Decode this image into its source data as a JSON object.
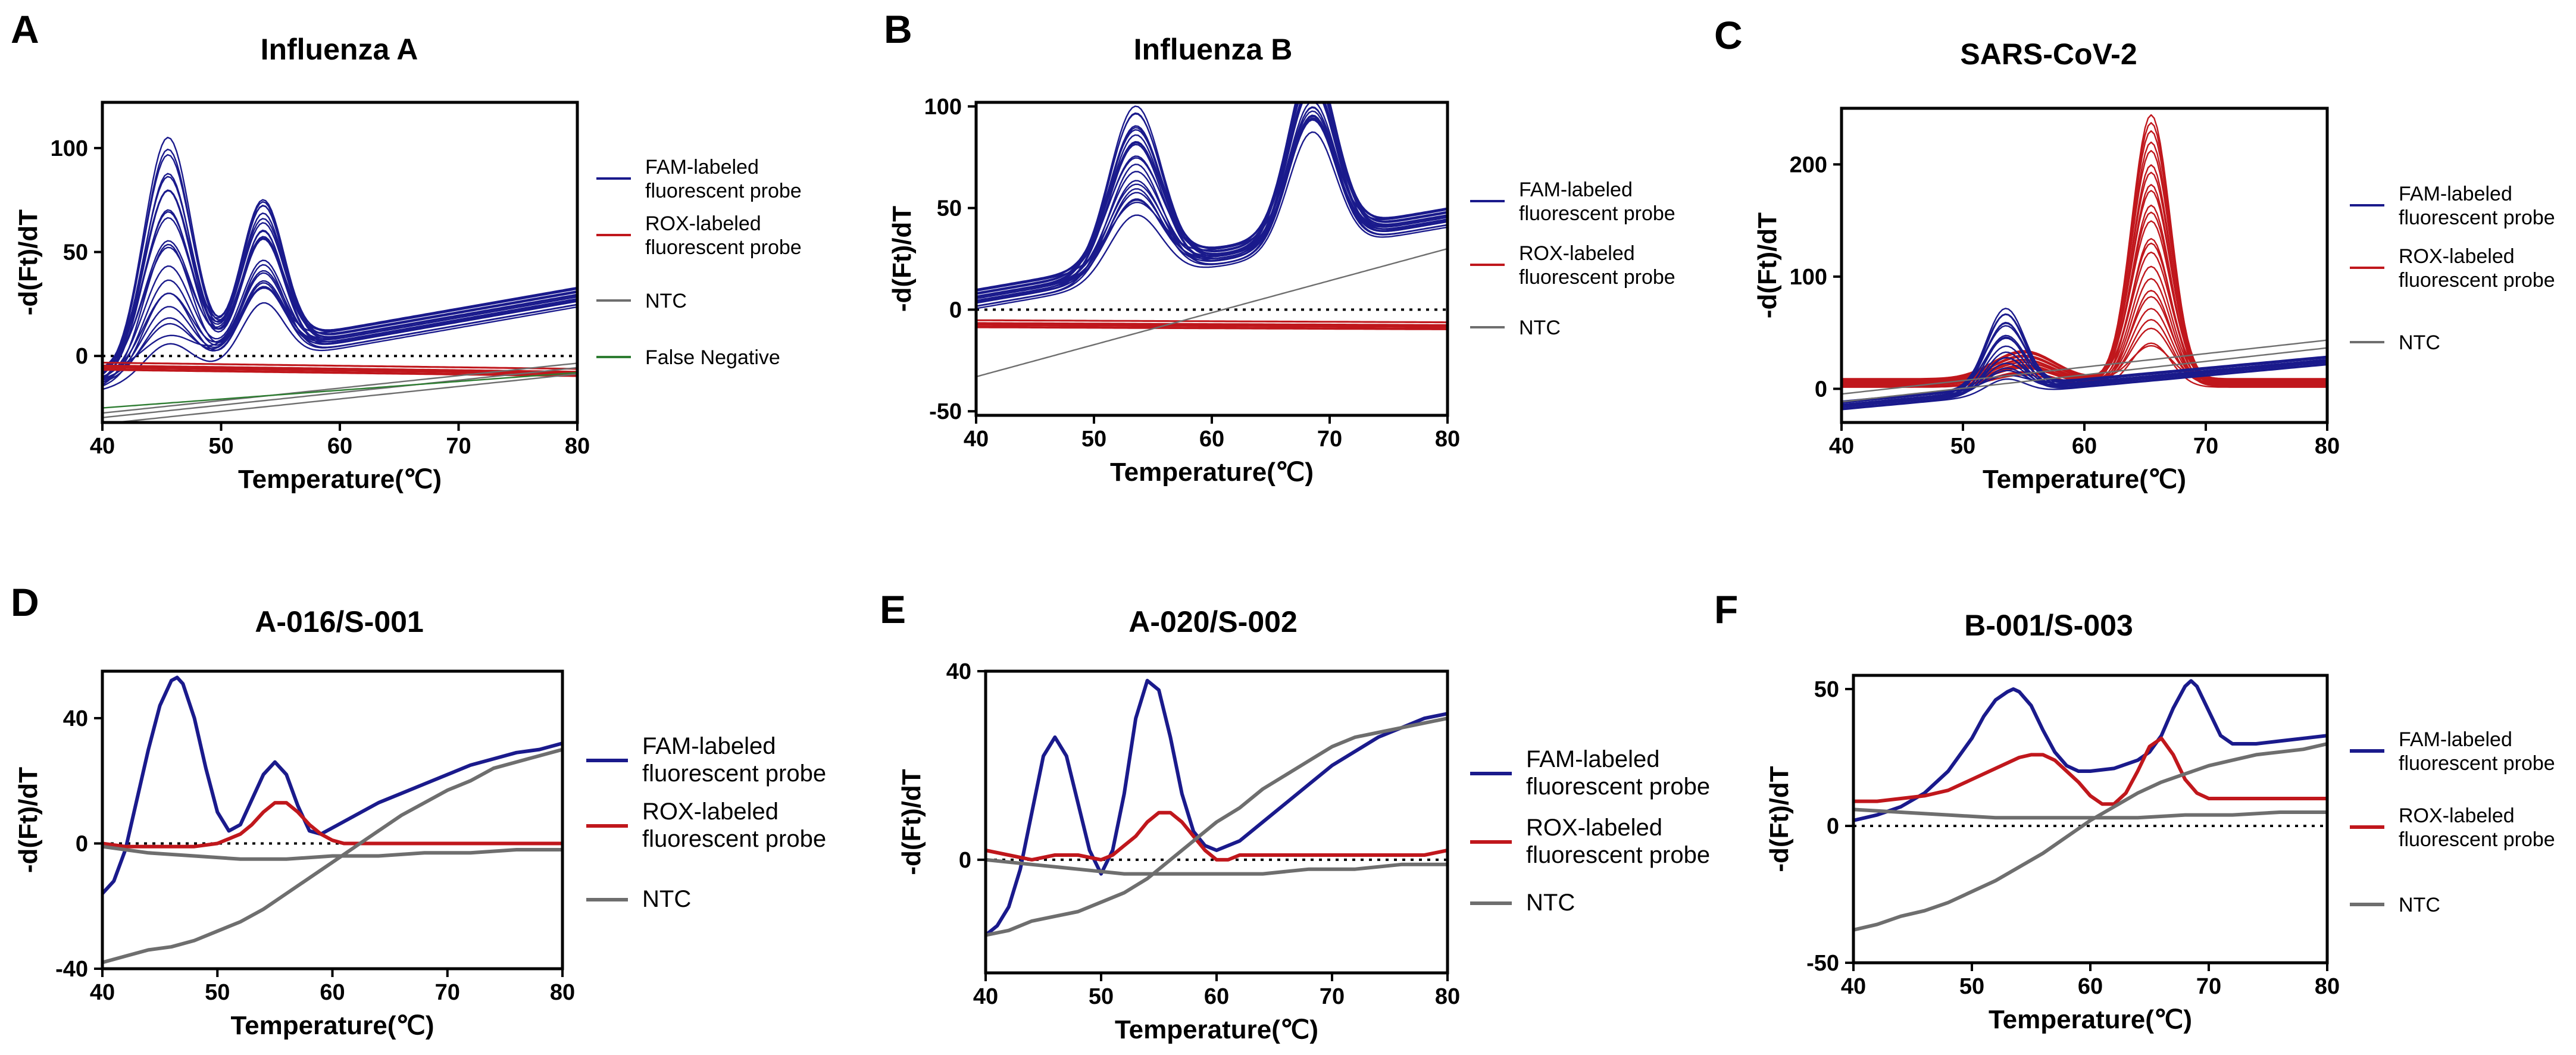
{
  "colors": {
    "fam": "#1a1a8c",
    "rox": "#c0171c",
    "ntc": "#6e6e6e",
    "false_negative": "#2e7d32"
  },
  "chart_data": [
    {
      "letter": "A",
      "type": "line",
      "title": "Influenza A",
      "xlabel": "Temperature(℃)",
      "ylabel": "-d(Ft)/dT",
      "xlim": [
        40,
        80
      ],
      "ylim": [
        -32,
        122
      ],
      "xticks": [
        "40",
        "50",
        "60",
        "70",
        "80"
      ],
      "yticks": [
        "0",
        "50",
        "100"
      ],
      "ytick_values": [
        0,
        50,
        100
      ],
      "dotted_zero": true,
      "legend": [
        "FAM-labeled\nfluorescent probe",
        "ROX-labeled\nfluorescent probe",
        "NTC",
        "False Negative"
      ],
      "series": [
        {
          "name": "FAM-labeled fluorescent probe",
          "color_key": "fam",
          "shape": "double_peak",
          "count": 22,
          "base_start": -12,
          "base_end": 28,
          "peak1_x": 45.5,
          "peak1_max": 110,
          "peak1_min": 12,
          "peak2_x": 53.5,
          "peak2_max": 71,
          "peak2_min": 8,
          "width1": 2.0,
          "width2": 1.8
        },
        {
          "name": "ROX-labeled fluorescent probe",
          "color_key": "rox",
          "shape": "flat",
          "count": 10,
          "base_start": -5,
          "base_end": -8,
          "spread": 2
        },
        {
          "name": "NTC",
          "color_key": "ntc",
          "shape": "ramp",
          "count": 3,
          "base_start": -30,
          "base_end": -6,
          "spread": 3
        },
        {
          "name": "False Negative",
          "color_key": "false_negative",
          "shape": "ramp",
          "count": 1,
          "base_start": -25,
          "base_end": -8,
          "spread": 0
        }
      ]
    },
    {
      "letter": "B",
      "type": "line",
      "title": "Influenza B",
      "xlabel": "Temperature(℃)",
      "ylabel": "-d(Ft)/dT",
      "xlim": [
        40,
        80
      ],
      "ylim": [
        -52,
        102
      ],
      "xticks": [
        "40",
        "50",
        "60",
        "70",
        "80"
      ],
      "yticks": [
        "-50",
        "0",
        "50",
        "100"
      ],
      "ytick_values": [
        -50,
        0,
        50,
        100
      ],
      "dotted_zero": true,
      "legend": [
        "FAM-labeled\nfluorescent probe",
        "ROX-labeled\nfluorescent probe",
        "NTC"
      ],
      "series": [
        {
          "name": "FAM-labeled fluorescent probe",
          "color_key": "fam",
          "shape": "double_peak",
          "count": 22,
          "base_start": 5,
          "base_end": 45,
          "peak1_x": 53.5,
          "peak1_max": 80,
          "peak1_min": 30,
          "peak2_x": 68.5,
          "peak2_max": 86,
          "peak2_min": 45,
          "width1": 2.2,
          "width2": 2.0
        },
        {
          "name": "ROX-labeled fluorescent probe",
          "color_key": "rox",
          "shape": "flat",
          "count": 10,
          "base_start": -7,
          "base_end": -8,
          "spread": 2
        },
        {
          "name": "NTC",
          "color_key": "ntc",
          "shape": "ramp",
          "count": 1,
          "base_start": -33,
          "base_end": 30,
          "spread": 0
        }
      ]
    },
    {
      "letter": "C",
      "type": "line",
      "title": "SARS-CoV-2",
      "xlabel": "Temperature(℃)",
      "ylabel": "-d(Ft)/dT",
      "xlim": [
        40,
        80
      ],
      "ylim": [
        -30,
        250
      ],
      "xticks": [
        "40",
        "50",
        "60",
        "70",
        "80"
      ],
      "yticks": [
        "0",
        "100",
        "200"
      ],
      "ytick_values": [
        0,
        100,
        200
      ],
      "dotted_zero": false,
      "legend": [
        "FAM-labeled\nfluorescent probe",
        "ROX-labeled\nfluorescent probe",
        "NTC"
      ],
      "series": [
        {
          "name": "ROX-labeled fluorescent probe",
          "color_key": "rox",
          "shape": "single_peak",
          "count": 24,
          "base_start": 5,
          "base_end": 5,
          "peak1_x": 65.5,
          "peak1_max": 242,
          "peak1_min": 30,
          "width1": 1.6,
          "bump_x": 55,
          "bump_max": 25,
          "bump_min": 10,
          "bump_w": 2.5
        },
        {
          "name": "FAM-labeled fluorescent probe",
          "color_key": "fam",
          "shape": "single_peak",
          "count": 18,
          "base_start": -15,
          "base_end": 25,
          "peak1_x": 53.5,
          "peak1_max": 72,
          "peak1_min": 10,
          "width1": 1.6
        },
        {
          "name": "NTC",
          "color_key": "ntc",
          "shape": "ramp",
          "count": 2,
          "base_start": -8,
          "base_end": 40,
          "spread": 4
        }
      ]
    },
    {
      "letter": "D",
      "type": "line",
      "title": "A-016/S-001",
      "xlabel": "Temperature(℃)",
      "ylabel": "-d(Ft)/dT",
      "xlim": [
        40,
        80
      ],
      "ylim": [
        -40,
        55
      ],
      "xticks": [
        "40",
        "50",
        "60",
        "70",
        "80"
      ],
      "yticks": [
        "-40",
        "0",
        "40"
      ],
      "ytick_values": [
        -40,
        0,
        40
      ],
      "dotted_zero": true,
      "legend": [
        "FAM-labeled\nfluorescent probe",
        "ROX-labeled\nfluorescent probe",
        "NTC"
      ],
      "series": [
        {
          "name": "FAM-labeled fluorescent probe",
          "color_key": "fam",
          "x": [
            40,
            41,
            42,
            43,
            44,
            45,
            46,
            46.5,
            47,
            48,
            49,
            50,
            51,
            52,
            53,
            54,
            55,
            56,
            57,
            58,
            59,
            60,
            62,
            64,
            66,
            68,
            70,
            72,
            74,
            76,
            78,
            80
          ],
          "y": [
            -16,
            -12,
            -2,
            14,
            30,
            44,
            52,
            53,
            51,
            40,
            24,
            10,
            4,
            6,
            14,
            22,
            26,
            22,
            12,
            4,
            3,
            5,
            9,
            13,
            16,
            19,
            22,
            25,
            27,
            29,
            30,
            32
          ]
        },
        {
          "name": "ROX-labeled fluorescent probe",
          "color_key": "rox",
          "x": [
            40,
            42,
            44,
            46,
            48,
            50,
            52,
            53,
            54,
            55,
            56,
            57,
            58,
            59,
            60,
            61,
            62,
            64,
            66,
            68,
            70,
            72,
            74,
            76,
            78,
            80
          ],
          "y": [
            0,
            -1,
            -1,
            -1,
            -1,
            0,
            3,
            6,
            10,
            13,
            13,
            10,
            6,
            3,
            1,
            0,
            0,
            0,
            0,
            0,
            0,
            0,
            0,
            0,
            0,
            0
          ]
        },
        {
          "name": "NTC",
          "color_key": "ntc",
          "x": [
            40,
            44,
            48,
            52,
            56,
            60,
            64,
            68,
            72,
            76,
            80
          ],
          "y": [
            -1,
            -3,
            -4,
            -5,
            -5,
            -4,
            -4,
            -3,
            -3,
            -2,
            -2
          ]
        },
        {
          "name": "NTC",
          "color_key": "ntc",
          "x": [
            40,
            42,
            44,
            46,
            48,
            50,
            52,
            54,
            56,
            58,
            60,
            62,
            64,
            66,
            68,
            70,
            72,
            74,
            76,
            78,
            80
          ],
          "y": [
            -38,
            -36,
            -34,
            -33,
            -31,
            -28,
            -25,
            -21,
            -16,
            -11,
            -6,
            -1,
            4,
            9,
            13,
            17,
            20,
            24,
            26,
            28,
            30
          ]
        }
      ]
    },
    {
      "letter": "E",
      "type": "line",
      "title": "A-020/S-002",
      "xlabel": "Temperature(℃)",
      "ylabel": "-d(Ft)/dT",
      "xlim": [
        40,
        80
      ],
      "ylim": [
        -24,
        40
      ],
      "xticks": [
        "40",
        "50",
        "60",
        "70",
        "80"
      ],
      "yticks": [
        "0",
        "40"
      ],
      "ytick_values": [
        0,
        40
      ],
      "dotted_zero": true,
      "legend": [
        "FAM-labeled\nfluorescent probe",
        "ROX-labeled\nfluorescent probe",
        "NTC"
      ],
      "series": [
        {
          "name": "FAM-labeled fluorescent probe",
          "color_key": "fam",
          "x": [
            40,
            41,
            42,
            43,
            44,
            45,
            46,
            47,
            48,
            49,
            50,
            51,
            52,
            53,
            54,
            55,
            56,
            57,
            58,
            59,
            60,
            62,
            64,
            66,
            68,
            70,
            72,
            74,
            76,
            78,
            80
          ],
          "y": [
            -16,
            -14,
            -10,
            -2,
            10,
            22,
            26,
            22,
            12,
            2,
            -3,
            2,
            14,
            30,
            38,
            36,
            26,
            14,
            6,
            3,
            2,
            4,
            8,
            12,
            16,
            20,
            23,
            26,
            28,
            30,
            31
          ]
        },
        {
          "name": "ROX-labeled fluorescent probe",
          "color_key": "rox",
          "x": [
            40,
            42,
            44,
            46,
            48,
            50,
            51,
            52,
            53,
            54,
            55,
            56,
            57,
            58,
            59,
            60,
            61,
            62,
            64,
            66,
            68,
            70,
            72,
            74,
            76,
            78,
            80
          ],
          "y": [
            2,
            1,
            0,
            1,
            1,
            0,
            1,
            3,
            5,
            8,
            10,
            10,
            8,
            5,
            2,
            0,
            0,
            1,
            1,
            1,
            1,
            1,
            1,
            1,
            1,
            1,
            2
          ]
        },
        {
          "name": "NTC",
          "color_key": "ntc",
          "x": [
            40,
            44,
            48,
            52,
            56,
            60,
            64,
            68,
            72,
            76,
            80
          ],
          "y": [
            0,
            -1,
            -2,
            -3,
            -3,
            -3,
            -3,
            -2,
            -2,
            -1,
            -1
          ]
        },
        {
          "name": "NTC",
          "color_key": "ntc",
          "x": [
            40,
            42,
            44,
            46,
            48,
            50,
            52,
            54,
            56,
            58,
            60,
            62,
            64,
            66,
            68,
            70,
            72,
            74,
            76,
            78,
            80
          ],
          "y": [
            -16,
            -15,
            -13,
            -12,
            -11,
            -9,
            -7,
            -4,
            0,
            4,
            8,
            11,
            15,
            18,
            21,
            24,
            26,
            27,
            28,
            29,
            30
          ]
        }
      ]
    },
    {
      "letter": "F",
      "type": "line",
      "title": "B-001/S-003",
      "xlabel": "Temperature(℃)",
      "ylabel": "-d(Ft)/dT",
      "xlim": [
        40,
        80
      ],
      "ylim": [
        -50,
        55
      ],
      "xticks": [
        "40",
        "50",
        "60",
        "70",
        "80"
      ],
      "yticks": [
        "-50",
        "0",
        "50"
      ],
      "ytick_values": [
        -50,
        0,
        50
      ],
      "dotted_zero": true,
      "legend": [
        "FAM-labeled\nfluorescent probe",
        "ROX-labeled\nfluorescent probe",
        "NTC"
      ],
      "series": [
        {
          "name": "FAM-labeled fluorescent probe",
          "color_key": "fam",
          "x": [
            40,
            42,
            44,
            46,
            48,
            50,
            51,
            52,
            53,
            53.5,
            54,
            55,
            56,
            57,
            58,
            59,
            60,
            62,
            64,
            65,
            66,
            67,
            68,
            68.5,
            69,
            70,
            71,
            72,
            74,
            76,
            78,
            80
          ],
          "y": [
            2,
            4,
            7,
            12,
            20,
            32,
            40,
            46,
            49,
            50,
            49,
            44,
            35,
            27,
            22,
            20,
            20,
            21,
            24,
            27,
            33,
            43,
            51,
            53,
            51,
            42,
            33,
            30,
            30,
            31,
            32,
            33
          ]
        },
        {
          "name": "ROX-labeled fluorescent probe",
          "color_key": "rox",
          "x": [
            40,
            42,
            44,
            46,
            48,
            50,
            52,
            54,
            55,
            56,
            57,
            58,
            59,
            60,
            61,
            62,
            63,
            64,
            65,
            66,
            67,
            68,
            69,
            70,
            72,
            74,
            76,
            78,
            80
          ],
          "y": [
            9,
            9,
            10,
            11,
            13,
            17,
            21,
            25,
            26,
            26,
            24,
            20,
            16,
            11,
            8,
            8,
            12,
            20,
            29,
            32,
            26,
            17,
            12,
            10,
            10,
            10,
            10,
            10,
            10
          ]
        },
        {
          "name": "NTC",
          "color_key": "ntc",
          "x": [
            40,
            44,
            48,
            52,
            56,
            60,
            64,
            68,
            72,
            76,
            80
          ],
          "y": [
            6,
            5,
            4,
            3,
            3,
            3,
            3,
            4,
            4,
            5,
            5
          ]
        },
        {
          "name": "NTC",
          "color_key": "ntc",
          "x": [
            40,
            42,
            44,
            46,
            48,
            50,
            52,
            54,
            56,
            58,
            60,
            62,
            64,
            66,
            68,
            70,
            72,
            74,
            76,
            78,
            80
          ],
          "y": [
            -38,
            -36,
            -33,
            -31,
            -28,
            -24,
            -20,
            -15,
            -10,
            -4,
            2,
            7,
            12,
            16,
            19,
            22,
            24,
            26,
            27,
            28,
            30
          ]
        }
      ]
    }
  ]
}
